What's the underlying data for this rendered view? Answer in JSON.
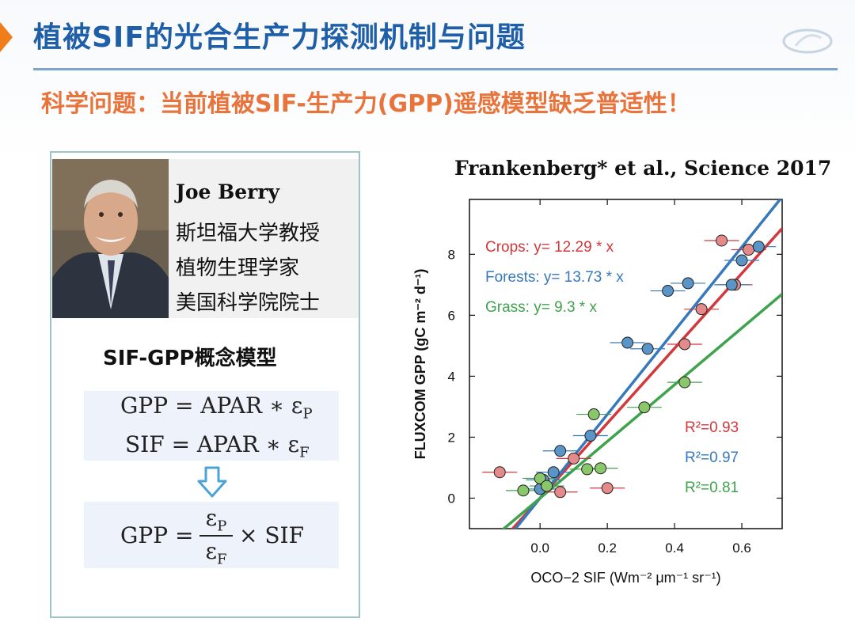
{
  "header": {
    "title": "植被SIF的光合生产力探测机制与问题",
    "question": "科学问题：当前植被SIF-生产力(GPP)遥感模型缺乏普适性！",
    "accent_color": "#1f5fa8",
    "question_color": "#e8743b"
  },
  "profile": {
    "name": "Joe Berry",
    "lines": [
      "斯坦福大学教授",
      "植物生理学家",
      "美国科学院院士"
    ]
  },
  "model": {
    "heading": "SIF-GPP概念模型",
    "eq1_lhs": "GPP = APAR ∗ ε",
    "eq1_sub": "P",
    "eq2_lhs": "SIF = APAR ∗ ε",
    "eq2_sub": "F",
    "eq3_lhs": "GPP =",
    "frac_num": "ε",
    "frac_num_sub": "P",
    "frac_den": "ε",
    "frac_den_sub": "F",
    "eq3_rhs": "× SIF"
  },
  "citation": "Frankenberg* et al., Science 2017",
  "chart_data": {
    "type": "scatter",
    "title": "",
    "xlabel": "OCO−2 SIF (Wm⁻² μm⁻¹ sr⁻¹)",
    "ylabel": "FLUXCOM GPP (gC m⁻² d⁻¹)",
    "xlim": [
      -0.21,
      0.72
    ],
    "ylim": [
      -1.0,
      9.8
    ],
    "xticks": [
      0.0,
      0.2,
      0.4,
      0.6
    ],
    "xtick_labels": [
      "0.0",
      "0.2",
      "0.4",
      "0.6"
    ],
    "yticks": [
      0,
      2,
      4,
      6,
      8
    ],
    "ytick_labels": [
      "0",
      "2",
      "4",
      "6",
      "8"
    ],
    "grid": false,
    "series": [
      {
        "name": "Crops",
        "color": "#d2383c",
        "fill": "#e58a8a",
        "equation": "Crops: y= 12.29 * x",
        "r2": "R²=0.93",
        "slope": 12.29,
        "points": [
          [
            -0.12,
            0.85
          ],
          [
            0.06,
            0.2
          ],
          [
            0.2,
            0.33
          ],
          [
            0.43,
            5.05
          ],
          [
            0.48,
            6.2
          ],
          [
            0.54,
            8.45
          ],
          [
            0.58,
            7.0
          ],
          [
            0.62,
            8.15
          ],
          [
            0.1,
            1.3
          ]
        ]
      },
      {
        "name": "Forests",
        "color": "#3779bb",
        "fill": "#5a95c8",
        "equation": "Forests: y= 13.73 * x",
        "r2": "R²=0.97",
        "slope": 13.73,
        "points": [
          [
            0.0,
            0.3
          ],
          [
            0.01,
            0.6
          ],
          [
            0.04,
            0.85
          ],
          [
            0.06,
            1.55
          ],
          [
            0.15,
            2.05
          ],
          [
            0.26,
            5.1
          ],
          [
            0.32,
            4.9
          ],
          [
            0.38,
            6.8
          ],
          [
            0.44,
            7.05
          ],
          [
            0.57,
            7.0
          ],
          [
            0.6,
            7.8
          ],
          [
            0.65,
            8.25
          ]
        ]
      },
      {
        "name": "Grass",
        "color": "#3fa34d",
        "fill": "#8ac66a",
        "equation": "Grass: y= 9.3 * x",
        "r2": "R²=0.81",
        "slope": 9.3,
        "points": [
          [
            -0.05,
            0.25
          ],
          [
            0.0,
            0.65
          ],
          [
            0.02,
            0.4
          ],
          [
            0.14,
            0.95
          ],
          [
            0.16,
            2.75
          ],
          [
            0.18,
            0.98
          ],
          [
            0.31,
            2.98
          ],
          [
            0.43,
            3.8
          ]
        ]
      }
    ]
  }
}
